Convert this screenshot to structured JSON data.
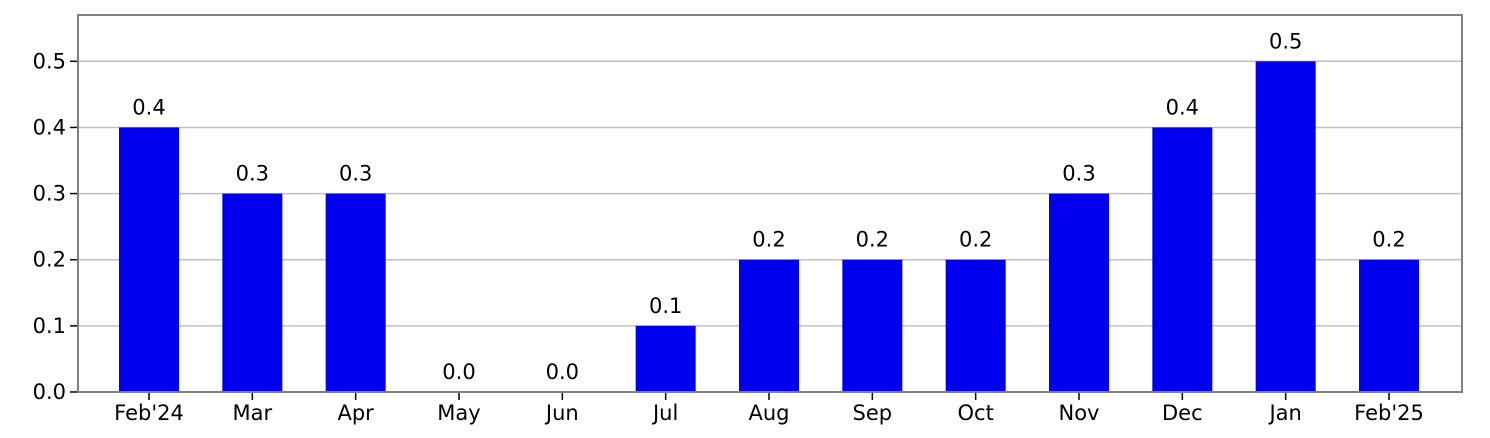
{
  "chart_data": {
    "type": "bar",
    "categories": [
      "Feb'24",
      "Mar",
      "Apr",
      "May",
      "Jun",
      "Jul",
      "Aug",
      "Sep",
      "Oct",
      "Nov",
      "Dec",
      "Jan",
      "Feb'25"
    ],
    "values": [
      0.4,
      0.3,
      0.3,
      0.0,
      0.0,
      0.1,
      0.2,
      0.2,
      0.2,
      0.3,
      0.4,
      0.5,
      0.2
    ],
    "data_labels": [
      "0.4",
      "0.3",
      "0.3",
      "0.0",
      "0.0",
      "0.1",
      "0.2",
      "0.2",
      "0.2",
      "0.3",
      "0.4",
      "0.5",
      "0.2"
    ],
    "title": "",
    "xlabel": "",
    "ylabel": "",
    "ylim": [
      0,
      0.57
    ],
    "yticks": [
      0.0,
      0.1,
      0.2,
      0.3,
      0.4,
      0.5
    ],
    "ytick_labels": [
      "0.0",
      "0.1",
      "0.2",
      "0.3",
      "0.4",
      "0.5"
    ],
    "grid": "horizontal",
    "legend": "none",
    "colors": {
      "bar": "#0000ee",
      "grid": "#c0c0c0",
      "frame": "#808080"
    }
  }
}
